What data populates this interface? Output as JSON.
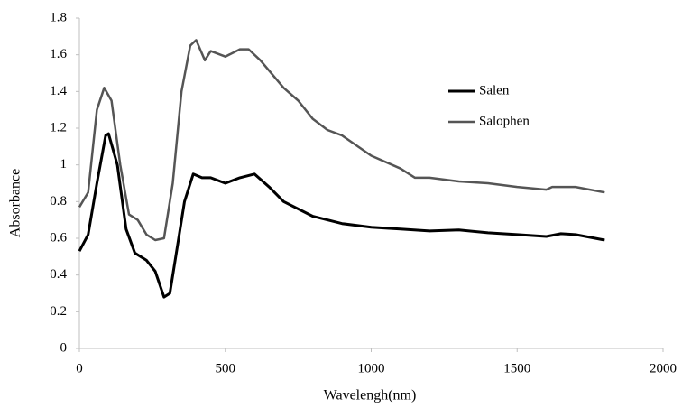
{
  "chart_data": {
    "type": "line",
    "x_label": "Wavelengh(nm)",
    "y_label": "Absorbance",
    "xlim": [
      0,
      2000
    ],
    "xticks": [
      0,
      500,
      1000,
      1500,
      2000
    ],
    "ylim": [
      0,
      1.8
    ],
    "yticks": [
      0,
      0.2,
      0.4,
      0.6,
      0.8,
      1,
      1.2,
      1.4,
      1.6,
      1.8
    ],
    "grid": false,
    "legend": "right",
    "series": [
      {
        "name": "Salen",
        "color": "#000000",
        "x": [
          0,
          30,
          60,
          90,
          100,
          130,
          160,
          190,
          230,
          260,
          290,
          310,
          330,
          360,
          390,
          420,
          450,
          500,
          550,
          600,
          650,
          700,
          800,
          900,
          1000,
          1100,
          1200,
          1300,
          1400,
          1500,
          1600,
          1650,
          1700,
          1800
        ],
        "values": [
          0.53,
          0.62,
          0.9,
          1.16,
          1.17,
          1.0,
          0.65,
          0.52,
          0.48,
          0.42,
          0.28,
          0.3,
          0.5,
          0.8,
          0.95,
          0.93,
          0.93,
          0.9,
          0.93,
          0.95,
          0.88,
          0.8,
          0.72,
          0.68,
          0.66,
          0.65,
          0.64,
          0.645,
          0.63,
          0.62,
          0.61,
          0.625,
          0.62,
          0.59
        ]
      },
      {
        "name": "Salophen",
        "color": "#555555",
        "x": [
          0,
          30,
          60,
          85,
          110,
          140,
          170,
          200,
          230,
          260,
          290,
          320,
          350,
          380,
          400,
          430,
          450,
          500,
          550,
          580,
          620,
          700,
          750,
          800,
          850,
          900,
          1000,
          1100,
          1150,
          1200,
          1300,
          1400,
          1500,
          1600,
          1620,
          1700,
          1800
        ],
        "values": [
          0.77,
          0.85,
          1.3,
          1.42,
          1.35,
          1.0,
          0.73,
          0.7,
          0.62,
          0.59,
          0.6,
          0.9,
          1.4,
          1.65,
          1.68,
          1.57,
          1.62,
          1.59,
          1.63,
          1.63,
          1.57,
          1.42,
          1.35,
          1.25,
          1.19,
          1.16,
          1.05,
          0.98,
          0.93,
          0.93,
          0.91,
          0.9,
          0.88,
          0.865,
          0.88,
          0.88,
          0.85
        ]
      }
    ]
  }
}
